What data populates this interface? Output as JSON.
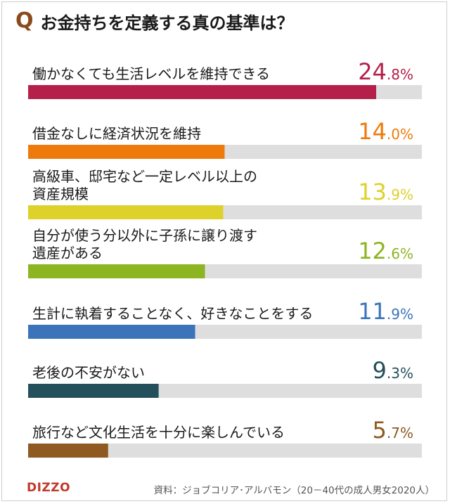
{
  "header": {
    "q_mark": "Q",
    "title": "お金持ちを定義する真の基準は？"
  },
  "chart_data": {
    "type": "bar",
    "orientation": "horizontal",
    "value_suffix": "%",
    "xlim": [
      0,
      30
    ],
    "grid": false,
    "legend": "none",
    "categories": [
      [
        "働かなくても生活レベルを維持できる"
      ],
      [
        "借金なしに経済状況を維持"
      ],
      [
        "高級車、邸宅など一定レベル以上の",
        "資産規模"
      ],
      [
        "自分が使う分以外に子孫に譲り渡す",
        "遺産がある"
      ],
      [
        "生計に執着することなく、好きなことをする"
      ],
      [
        "老後の不安がない"
      ],
      [
        "旅行など文化生活を十分に楽しんでいる"
      ]
    ],
    "values": [
      24.8,
      14.0,
      13.9,
      12.6,
      11.9,
      9.3,
      5.7
    ],
    "value_labels": [
      {
        "int": "24",
        "dec": ".8%"
      },
      {
        "int": "14",
        "dec": ".0%"
      },
      {
        "int": "13",
        "dec": ".9%"
      },
      {
        "int": "12",
        "dec": ".6%"
      },
      {
        "int": "11",
        "dec": ".9%"
      },
      {
        "int": "9",
        "dec": ".3%"
      },
      {
        "int": "5",
        "dec": ".7%"
      }
    ],
    "colors": [
      "#b5204a",
      "#ef7a0c",
      "#ddd12a",
      "#8db421",
      "#3b74b8",
      "#24505c",
      "#8e5a21"
    ],
    "track_color": "#dedede"
  },
  "footer": {
    "logo": "DIZZO",
    "source": "資料：ジョブコリア･アルバモン（20－40代の成人男女2020人）"
  }
}
